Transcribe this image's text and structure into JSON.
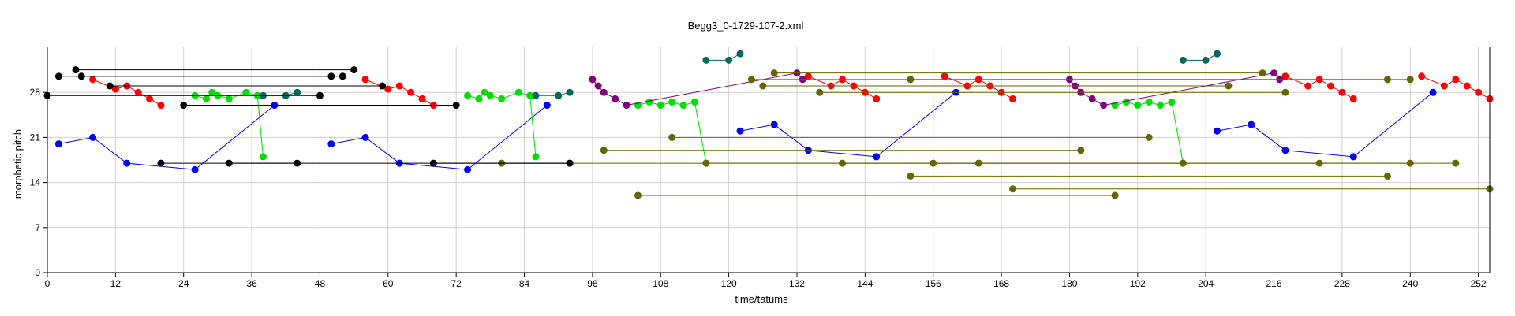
{
  "chart_data": {
    "type": "scatter",
    "title": "Begg3_0-1729-107-2.xml",
    "xlabel": "time/tatums",
    "ylabel": "morphetic pitch",
    "xlim": [
      0,
      254
    ],
    "ylim": [
      0,
      35
    ],
    "xticks": [
      0,
      12,
      24,
      36,
      48,
      60,
      72,
      84,
      96,
      108,
      120,
      132,
      144,
      156,
      168,
      180,
      192,
      204,
      216,
      228,
      240,
      252
    ],
    "yticks": [
      0,
      7,
      14,
      21,
      28
    ],
    "grid": true,
    "series": [
      {
        "color": "#0000ff",
        "lines": [
          [
            [
              2,
              20
            ],
            [
              8,
              21
            ],
            [
              14,
              17
            ],
            [
              26,
              16
            ],
            [
              40,
              26
            ]
          ],
          [
            [
              50,
              20
            ],
            [
              56,
              21
            ],
            [
              62,
              17
            ],
            [
              74,
              16
            ],
            [
              88,
              26
            ]
          ],
          [
            [
              122,
              22
            ],
            [
              128,
              23
            ],
            [
              134,
              19
            ],
            [
              146,
              18
            ],
            [
              160,
              28
            ]
          ],
          [
            [
              206,
              22
            ],
            [
              212,
              23
            ],
            [
              218,
              19
            ],
            [
              230,
              18
            ],
            [
              244,
              28
            ]
          ]
        ]
      },
      {
        "color": "#ff0000",
        "lines": [
          [
            [
              8,
              30
            ],
            [
              12,
              28.5
            ],
            [
              14,
              29
            ],
            [
              16,
              28
            ],
            [
              18,
              27
            ],
            [
              20,
              26
            ]
          ],
          [
            [
              56,
              30
            ],
            [
              60,
              28.5
            ],
            [
              62,
              29
            ],
            [
              64,
              28
            ],
            [
              66,
              27
            ],
            [
              68,
              26
            ]
          ],
          [
            [
              134,
              30.5
            ],
            [
              138,
              29
            ],
            [
              140,
              30
            ],
            [
              142,
              29
            ],
            [
              144,
              28
            ],
            [
              146,
              27
            ]
          ],
          [
            [
              158,
              30.5
            ],
            [
              162,
              29
            ],
            [
              164,
              30
            ],
            [
              166,
              29
            ],
            [
              168,
              28
            ],
            [
              170,
              27
            ]
          ],
          [
            [
              218,
              30.5
            ],
            [
              222,
              29
            ],
            [
              224,
              30
            ],
            [
              226,
              29
            ],
            [
              228,
              28
            ],
            [
              230,
              27
            ]
          ],
          [
            [
              242,
              30.5
            ],
            [
              246,
              29
            ],
            [
              248,
              30
            ],
            [
              250,
              29
            ],
            [
              252,
              28
            ],
            [
              254,
              27
            ]
          ]
        ]
      },
      {
        "color": "#00dd00",
        "lines": [
          [
            [
              26,
              27.5
            ],
            [
              28,
              27
            ],
            [
              29,
              28
            ],
            [
              30,
              27.5
            ],
            [
              32,
              27
            ],
            [
              35,
              28
            ],
            [
              37,
              27.5
            ],
            [
              38,
              18
            ]
          ],
          [
            [
              74,
              27.5
            ],
            [
              76,
              27
            ],
            [
              77,
              28
            ],
            [
              78,
              27.5
            ],
            [
              80,
              27
            ],
            [
              83,
              28
            ],
            [
              85,
              27.5
            ],
            [
              86,
              18
            ]
          ],
          [
            [
              104,
              26
            ],
            [
              106,
              26.5
            ],
            [
              108,
              26
            ],
            [
              110,
              26.5
            ],
            [
              112,
              26
            ],
            [
              114,
              26.5
            ],
            [
              116,
              17
            ]
          ],
          [
            [
              188,
              26
            ],
            [
              190,
              26.5
            ],
            [
              192,
              26
            ],
            [
              194,
              26.5
            ],
            [
              196,
              26
            ],
            [
              198,
              26.5
            ],
            [
              200,
              17
            ]
          ]
        ]
      },
      {
        "color": "#006666",
        "lines": [
          [
            [
              38,
              27.5
            ],
            [
              42,
              27.5
            ],
            [
              44,
              28
            ]
          ],
          [
            [
              86,
              27.5
            ],
            [
              90,
              27.5
            ],
            [
              92,
              28
            ]
          ],
          [
            [
              116,
              33
            ],
            [
              120,
              33
            ],
            [
              122,
              34
            ]
          ],
          [
            [
              200,
              33
            ],
            [
              204,
              33
            ],
            [
              206,
              34
            ]
          ]
        ]
      },
      {
        "color": "#800080",
        "lines": [
          [
            [
              96,
              30
            ],
            [
              97,
              29
            ],
            [
              98,
              28
            ],
            [
              100,
              27
            ],
            [
              102,
              26
            ],
            [
              132,
              31
            ],
            [
              133,
              30
            ]
          ],
          [
            [
              180,
              30
            ],
            [
              181,
              29
            ],
            [
              182,
              28
            ],
            [
              184,
              27
            ],
            [
              186,
              26
            ],
            [
              216,
              31
            ],
            [
              217,
              30
            ]
          ]
        ]
      },
      {
        "color": "#666600",
        "lines": [
          [
            [
              128,
              31
            ],
            [
              214,
              31
            ]
          ],
          [
            [
              124,
              30
            ],
            [
              236,
              30
            ]
          ],
          [
            [
              126,
              29
            ],
            [
              208,
              29
            ]
          ],
          [
            [
              136,
              28
            ],
            [
              218,
              28
            ]
          ],
          [
            [
              98,
              19
            ],
            [
              182,
              19
            ]
          ],
          [
            [
              110,
              21
            ],
            [
              194,
              21
            ]
          ],
          [
            [
              80,
              17
            ],
            [
              164,
              17
            ]
          ],
          [
            [
              116,
              17
            ],
            [
              200,
              17
            ]
          ],
          [
            [
              140,
              17
            ],
            [
              224,
              17
            ]
          ],
          [
            [
              156,
              17
            ],
            [
              240,
              17
            ]
          ],
          [
            [
              164,
              17
            ],
            [
              248,
              17
            ]
          ],
          [
            [
              152,
              15
            ],
            [
              236,
              15
            ]
          ],
          [
            [
              170,
              13
            ],
            [
              254,
              13
            ]
          ],
          [
            [
              104,
              12
            ],
            [
              188,
              12
            ]
          ],
          [
            [
              152,
              30
            ],
            [
              240,
              30
            ]
          ]
        ]
      },
      {
        "color": "#000000",
        "lines": [
          [
            [
              2,
              30.5
            ],
            [
              52,
              30.5
            ]
          ],
          [
            [
              5,
              31.5
            ],
            [
              54,
              31.5
            ]
          ],
          [
            [
              6,
              30.5
            ],
            [
              50,
              30.5
            ]
          ],
          [
            [
              11,
              29
            ],
            [
              59,
              29
            ]
          ],
          [
            [
              0,
              27.5
            ],
            [
              48,
              27.5
            ]
          ],
          [
            [
              24,
              26
            ],
            [
              72,
              26
            ]
          ],
          [
            [
              20,
              17
            ],
            [
              92,
              17
            ]
          ],
          [
            [
              32,
              17
            ],
            [
              44,
              17
            ]
          ],
          [
            [
              68,
              17
            ],
            [
              92,
              17
            ]
          ]
        ]
      }
    ]
  }
}
